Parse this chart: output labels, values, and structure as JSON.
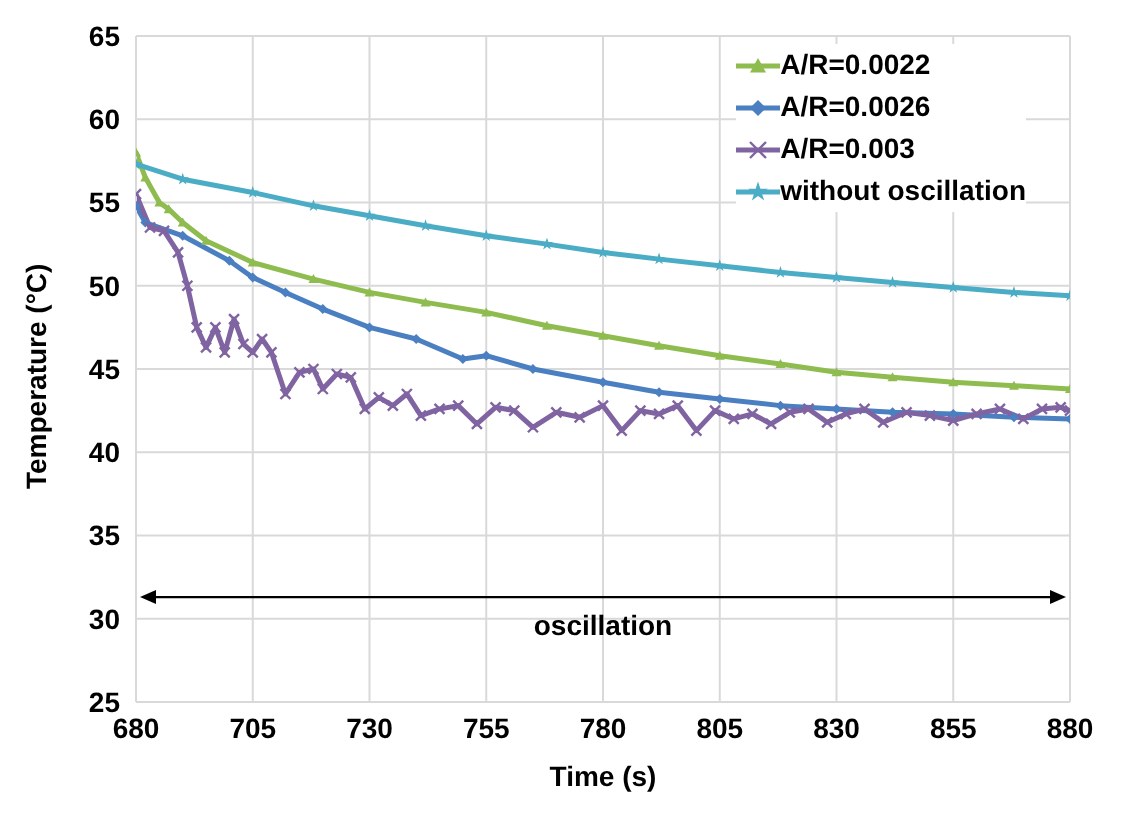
{
  "chart_data": {
    "type": "line",
    "xlabel": "Time (s)",
    "ylabel": "Temperature (°C)",
    "xlim": [
      680,
      880
    ],
    "xticks": [
      680,
      705,
      730,
      755,
      780,
      805,
      830,
      855,
      880
    ],
    "ylim": [
      25,
      65
    ],
    "yticks": [
      25,
      30,
      35,
      40,
      45,
      50,
      55,
      60,
      65
    ],
    "grid": true,
    "legend": "top right",
    "ref_lines": [
      {
        "axis": "y",
        "value": 31.3,
        "label": "oscillation",
        "color": "#000000"
      }
    ],
    "series": [
      {
        "name": "A/R=0.0022",
        "color": "#8fbc4f",
        "marker": "triangle",
        "x": [
          680,
          682,
          685,
          687,
          690,
          695,
          705,
          718,
          730,
          742,
          755,
          768,
          780,
          792,
          805,
          818,
          830,
          842,
          855,
          868,
          880
        ],
        "values": [
          58,
          56.5,
          55,
          54.6,
          53.8,
          52.7,
          51.4,
          50.4,
          49.6,
          49,
          48.4,
          47.6,
          47,
          46.4,
          45.8,
          45.3,
          44.8,
          44.5,
          44.2,
          44,
          43.8
        ]
      },
      {
        "name": "A/R=0.0026",
        "color": "#4a7fc1",
        "marker": "diamond",
        "x": [
          680,
          682,
          690,
          700,
          705,
          712,
          720,
          730,
          740,
          750,
          755,
          765,
          780,
          792,
          805,
          818,
          830,
          842,
          855,
          868,
          880
        ],
        "values": [
          54.8,
          53.8,
          53,
          51.5,
          50.5,
          49.6,
          48.6,
          47.5,
          46.8,
          45.6,
          45.8,
          45,
          44.2,
          43.6,
          43.2,
          42.8,
          42.6,
          42.4,
          42.3,
          42.1,
          42
        ]
      },
      {
        "name": "A/R=0.003",
        "color": "#8064a2",
        "marker": "cross",
        "x": [
          680,
          683,
          686,
          689,
          691,
          693,
          695,
          697,
          699,
          701,
          703,
          705,
          707,
          709,
          712,
          715,
          718,
          720,
          723,
          726,
          729,
          732,
          735,
          738,
          741,
          745,
          749,
          753,
          757,
          761,
          765,
          770,
          775,
          780,
          784,
          788,
          792,
          796,
          800,
          804,
          808,
          812,
          816,
          820,
          824,
          828,
          832,
          836,
          840,
          845,
          850,
          855,
          860,
          865,
          870,
          874,
          878,
          880
        ],
        "values": [
          55.5,
          53.5,
          53.3,
          52,
          50,
          47.5,
          46.3,
          47.5,
          46,
          48,
          46.5,
          46,
          46.8,
          46,
          43.5,
          44.8,
          45,
          43.8,
          44.7,
          44.5,
          42.6,
          43.3,
          42.8,
          43.5,
          42.2,
          42.6,
          42.8,
          41.7,
          42.7,
          42.5,
          41.5,
          42.4,
          42.1,
          42.8,
          41.3,
          42.5,
          42.3,
          42.8,
          41.3,
          42.5,
          42,
          42.3,
          41.7,
          42.4,
          42.6,
          41.8,
          42.3,
          42.6,
          41.8,
          42.4,
          42.2,
          41.9,
          42.3,
          42.6,
          42,
          42.6,
          42.7,
          42.5
        ]
      },
      {
        "name": "without oscillation",
        "color": "#4bacc6",
        "marker": "star",
        "x": [
          680,
          690,
          705,
          718,
          730,
          742,
          755,
          768,
          780,
          792,
          805,
          818,
          830,
          842,
          855,
          868,
          880
        ],
        "values": [
          57.3,
          56.4,
          55.6,
          54.8,
          54.2,
          53.6,
          53,
          52.5,
          52,
          51.6,
          51.2,
          50.8,
          50.5,
          50.2,
          49.9,
          49.6,
          49.4
        ]
      }
    ]
  }
}
